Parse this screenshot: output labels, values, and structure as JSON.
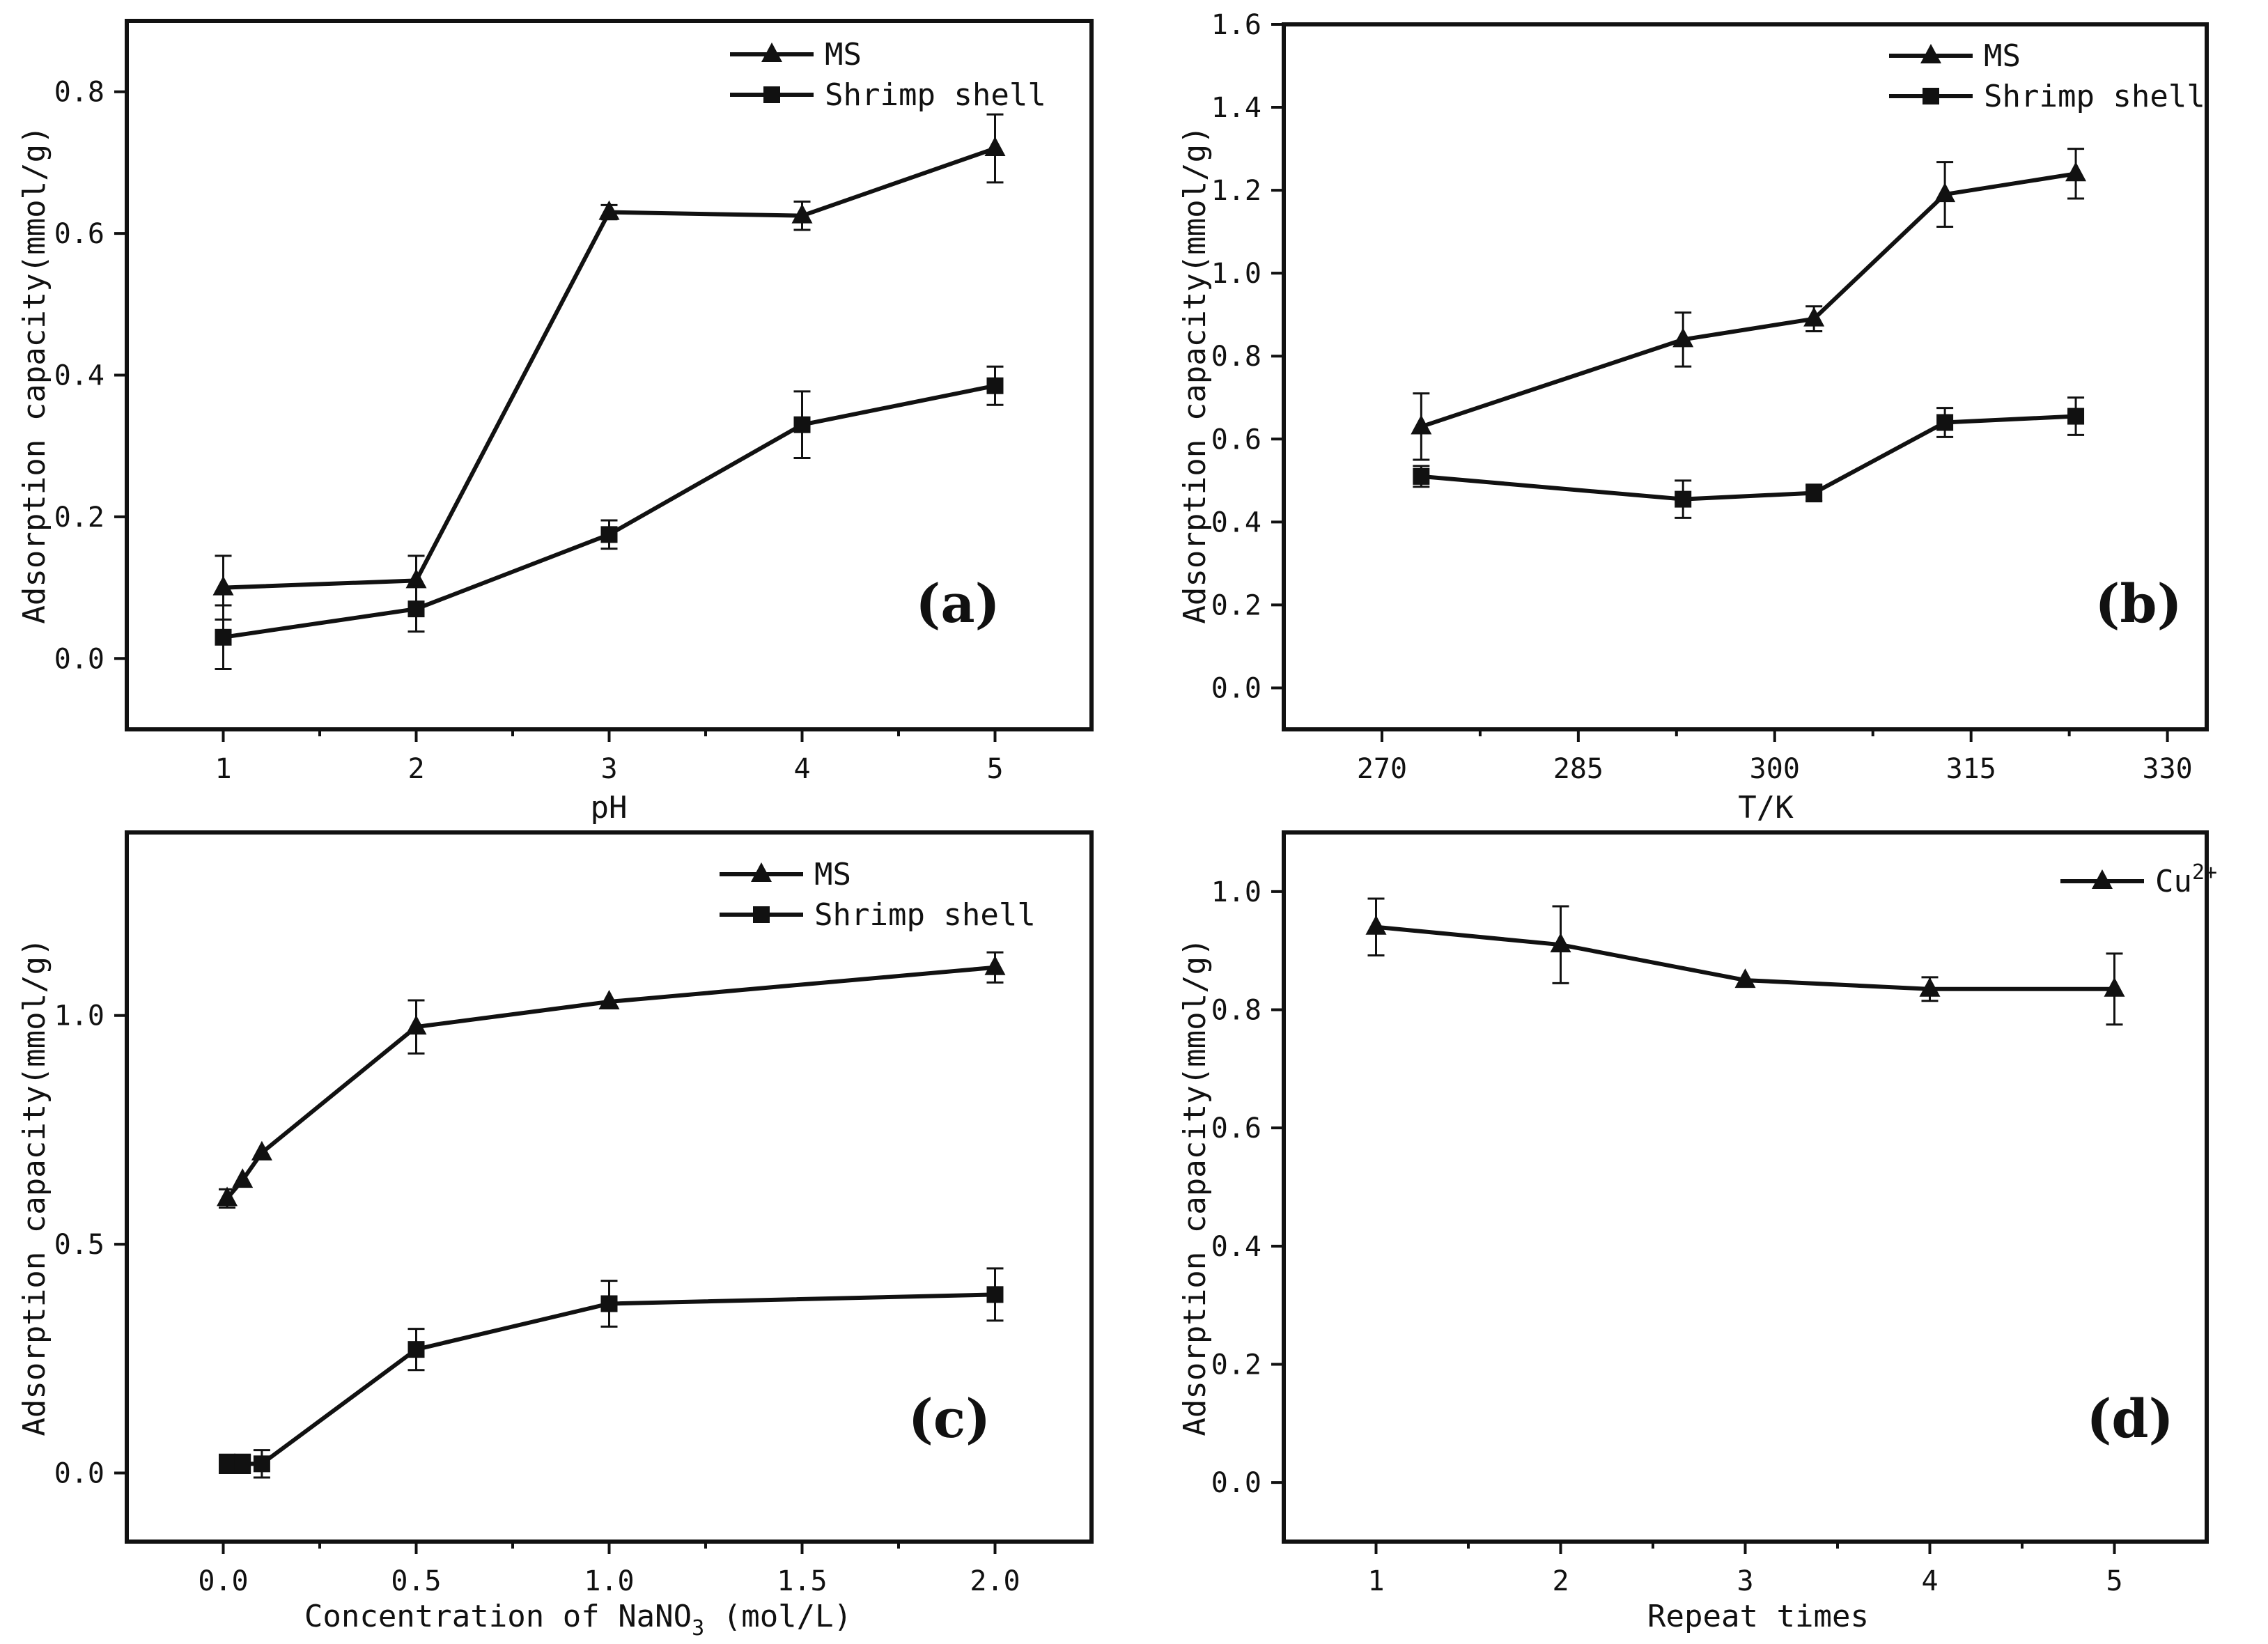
{
  "chart_data": [
    {
      "id": "a",
      "type": "line",
      "panel_label": "(a)",
      "xlabel": "pH",
      "ylabel": "Adsorption capacity(mmol/g)",
      "xlim": [
        0.5,
        5.5
      ],
      "ylim": [
        -0.1,
        0.9
      ],
      "xticks": [
        1,
        2,
        3,
        4,
        5
      ],
      "xtick_labels": [
        "1",
        "2",
        "3",
        "4",
        "5"
      ],
      "yticks": [
        0.0,
        0.2,
        0.4,
        0.6,
        0.8
      ],
      "ytick_labels": [
        "0.0",
        "0.2",
        "0.4",
        "0.6",
        "0.8"
      ],
      "legend_position": "top-right",
      "series": [
        {
          "name": "MS",
          "marker": "triangle",
          "x": [
            1,
            2,
            3,
            4,
            5
          ],
          "values": [
            0.1,
            0.11,
            0.63,
            0.625,
            0.72
          ],
          "errors": [
            0.045,
            0.035,
            0.01,
            0.02,
            0.048
          ]
        },
        {
          "name": "Shrimp shell",
          "marker": "square",
          "x": [
            1,
            2,
            3,
            4,
            5
          ],
          "values": [
            0.03,
            0.07,
            0.175,
            0.33,
            0.385
          ],
          "errors": [
            0.045,
            0.032,
            0.02,
            0.047,
            0.027
          ]
        }
      ]
    },
    {
      "id": "b",
      "type": "line",
      "panel_label": "(b)",
      "xlabel": "T/K",
      "ylabel": "Adsorption capacity(mmol/g)",
      "xlim": [
        262.5,
        333
      ],
      "ylim": [
        -0.1,
        1.6
      ],
      "xticks": [
        270,
        285,
        300,
        315,
        330
      ],
      "xtick_labels": [
        "270",
        "285",
        "300",
        "315",
        "330"
      ],
      "yticks": [
        0.0,
        0.2,
        0.4,
        0.6,
        0.8,
        1.0,
        1.2,
        1.4,
        1.6
      ],
      "ytick_labels": [
        "0.0",
        "0.2",
        "0.4",
        "0.6",
        "0.8",
        "1.0",
        "1.2",
        "1.4",
        "1.6"
      ],
      "legend_position": "top-right",
      "series": [
        {
          "name": "MS",
          "marker": "triangle",
          "x": [
            273,
            293,
            303,
            313,
            323
          ],
          "values": [
            0.63,
            0.84,
            0.89,
            1.19,
            1.24
          ],
          "errors": [
            0.08,
            0.065,
            0.03,
            0.078,
            0.06
          ]
        },
        {
          "name": "Shrimp shell",
          "marker": "square",
          "x": [
            273,
            293,
            303,
            313,
            323
          ],
          "values": [
            0.51,
            0.455,
            0.47,
            0.64,
            0.655
          ],
          "errors": [
            0.025,
            0.045,
            0.02,
            0.035,
            0.045
          ]
        }
      ]
    },
    {
      "id": "c",
      "type": "line",
      "panel_label": "(c)",
      "xlabel_prefix": "Concentration of NaNO",
      "xlabel_sub": "3",
      "xlabel_suffix": " (mol/L)",
      "ylabel": "Adsorption capacity(mmol/g)",
      "xlim": [
        -0.25,
        2.25
      ],
      "ylim": [
        -0.15,
        1.4
      ],
      "xticks": [
        0.0,
        0.5,
        1.0,
        1.5,
        2.0
      ],
      "xtick_labels": [
        "0.0",
        "0.5",
        "1.0",
        "1.5",
        "2.0"
      ],
      "yticks": [
        0.0,
        0.5,
        1.0
      ],
      "ytick_labels": [
        "0.0",
        "0.5",
        "1.0"
      ],
      "legend_position": "top-right",
      "series": [
        {
          "name": "MS",
          "marker": "triangle",
          "x": [
            0.01,
            0.05,
            0.1,
            0.5,
            1.0,
            2.0
          ],
          "values": [
            0.6,
            0.64,
            0.7,
            0.975,
            1.03,
            1.105
          ],
          "errors": [
            0.02,
            0.0,
            0.0,
            0.058,
            0.0,
            0.033
          ]
        },
        {
          "name": "Shrimp shell",
          "marker": "square",
          "x": [
            0.01,
            0.05,
            0.1,
            0.5,
            1.0,
            2.0
          ],
          "values": [
            0.02,
            0.02,
            0.02,
            0.27,
            0.37,
            0.39
          ],
          "errors": [
            0.02,
            0.02,
            0.03,
            0.045,
            0.05,
            0.057
          ]
        }
      ]
    },
    {
      "id": "d",
      "type": "line",
      "panel_label": "(d)",
      "xlabel": "Repeat times",
      "ylabel": "Adsorption capacity(mmol/g)",
      "xlim": [
        0.5,
        5.5
      ],
      "ylim": [
        -0.1,
        1.1
      ],
      "xticks": [
        1,
        2,
        3,
        4,
        5
      ],
      "xtick_labels": [
        "1",
        "2",
        "3",
        "4",
        "5"
      ],
      "yticks": [
        0.0,
        0.2,
        0.4,
        0.6,
        0.8,
        1.0
      ],
      "ytick_labels": [
        "0.0",
        "0.2",
        "0.4",
        "0.6",
        "0.8",
        "1.0"
      ],
      "legend_position": "top-right",
      "series": [
        {
          "name": "Cu",
          "name_sup": "2+",
          "marker": "triangle",
          "x": [
            1,
            2,
            3,
            4,
            5
          ],
          "values": [
            0.94,
            0.91,
            0.85,
            0.835,
            0.835
          ],
          "errors": [
            0.048,
            0.065,
            0.0,
            0.02,
            0.06
          ]
        }
      ]
    }
  ]
}
